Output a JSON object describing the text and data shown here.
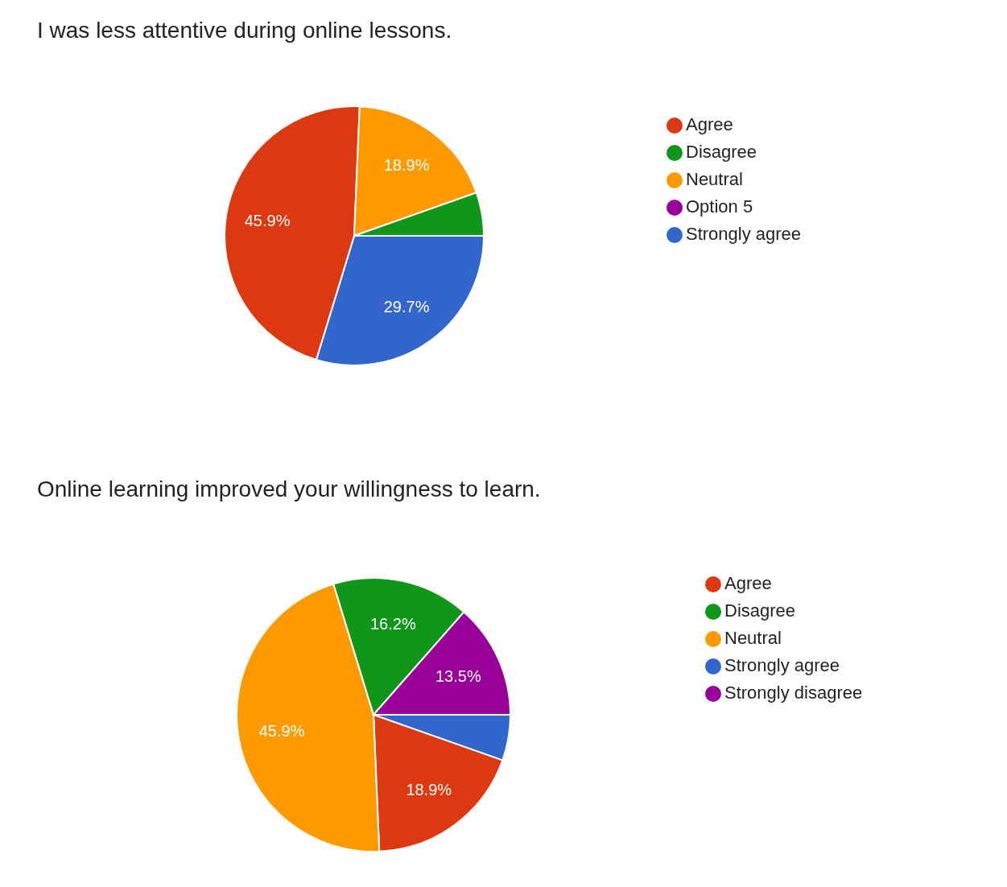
{
  "chart_data": [
    {
      "type": "pie",
      "title": "I was less attentive during online lessons.",
      "categories": [
        "Strongly agree",
        "Agree",
        "Neutral",
        "Disagree",
        "Option 5"
      ],
      "values": [
        29.7,
        45.9,
        18.9,
        5.4,
        0
      ],
      "colors": [
        "#3366cc",
        "#dc3912",
        "#ff9900",
        "#109618",
        "#990099"
      ],
      "value_labels": [
        "29.7%",
        "45.9%",
        "18.9%",
        null,
        null
      ],
      "legend": "right"
    },
    {
      "type": "pie",
      "title": "Online learning improved your willingness to learn.",
      "categories": [
        "Strongly agree",
        "Agree",
        "Neutral",
        "Disagree",
        "Strongly disagree"
      ],
      "values": [
        5.4,
        18.9,
        45.9,
        16.2,
        13.5
      ],
      "colors": [
        "#3366cc",
        "#dc3912",
        "#ff9900",
        "#109618",
        "#990099"
      ],
      "value_labels": [
        null,
        "18.9%",
        "45.9%",
        "16.2%",
        "13.5%"
      ],
      "legend": "right"
    }
  ]
}
